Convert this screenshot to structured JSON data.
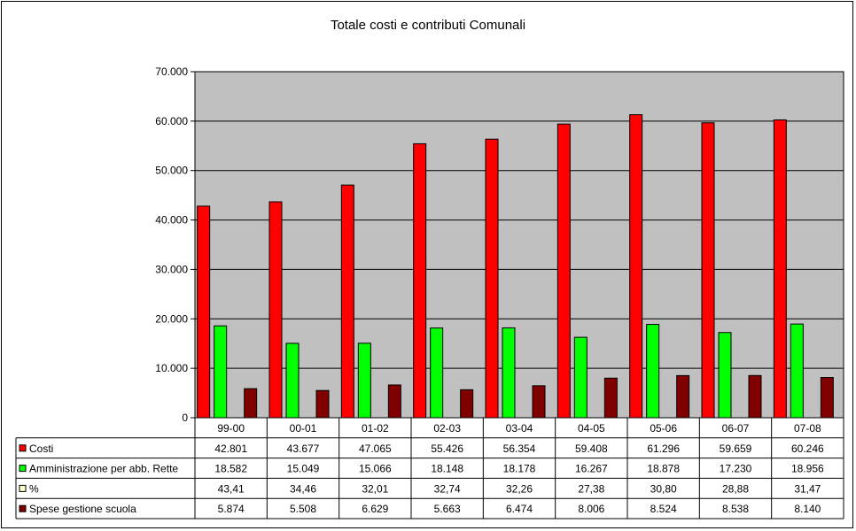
{
  "chart_data": {
    "type": "bar",
    "title": "Totale costi e contributi Comunali",
    "categories": [
      "99-00",
      "00-01",
      "01-02",
      "02-03",
      "03-04",
      "04-05",
      "05-06",
      "06-07",
      "07-08"
    ],
    "ylim": [
      0,
      70000
    ],
    "yticks": [
      0,
      10000,
      20000,
      30000,
      40000,
      50000,
      60000,
      70000
    ],
    "ytick_labels": [
      "0",
      "10.000",
      "20.000",
      "30.000",
      "40.000",
      "50.000",
      "60.000",
      "70.000"
    ],
    "grid": true,
    "legend": "data table",
    "plot_background": "#c0c0c0",
    "series": [
      {
        "name": "Costi",
        "color": "#ff0000",
        "values": [
          42801,
          43677,
          47065,
          55426,
          56354,
          59408,
          61296,
          59659,
          60246
        ],
        "labels": [
          "42.801",
          "43.677",
          "47.065",
          "55.426",
          "56.354",
          "59.408",
          "61.296",
          "59.659",
          "60.246"
        ]
      },
      {
        "name": "Amministrazione per abb. Rette",
        "color": "#00ff00",
        "values": [
          18582,
          15049,
          15066,
          18148,
          18178,
          16267,
          18878,
          17230,
          18956
        ],
        "labels": [
          "18.582",
          "15.049",
          "15.066",
          "18.148",
          "18.178",
          "16.267",
          "18.878",
          "17.230",
          "18.956"
        ]
      },
      {
        "name": "%",
        "color": "#ffffcc",
        "values": [
          43.41,
          34.46,
          32.01,
          32.74,
          32.26,
          27.38,
          30.8,
          28.88,
          31.47
        ],
        "labels": [
          "43,41",
          "34,46",
          "32,01",
          "32,74",
          "32,26",
          "27,38",
          "30,80",
          "28,88",
          "31,47"
        ]
      },
      {
        "name": "Spese gestione scuola",
        "color": "#800000",
        "values": [
          5874,
          5508,
          6629,
          5663,
          6474,
          8006,
          8524,
          8538,
          8140
        ],
        "labels": [
          "5.874",
          "5.508",
          "6.629",
          "5.663",
          "6.474",
          "8.006",
          "8.524",
          "8.538",
          "8.140"
        ]
      }
    ]
  }
}
